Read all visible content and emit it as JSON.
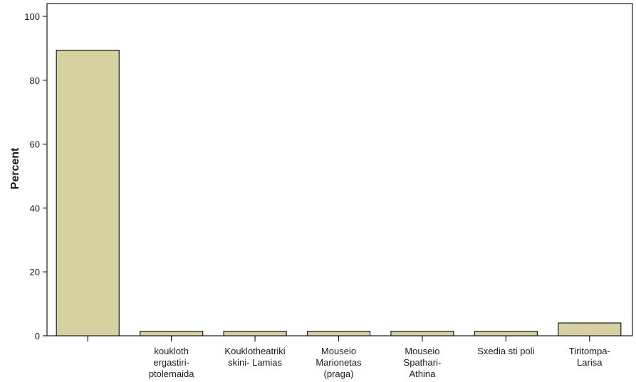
{
  "chart_data": {
    "type": "bar",
    "title": "",
    "xlabel": "",
    "ylabel": "Percent",
    "ylim": [
      0,
      104
    ],
    "yticks": [
      0,
      20,
      40,
      60,
      80,
      100
    ],
    "grid": false,
    "categories": [
      "",
      "koukloth ergastiri-ptolemaida",
      "Kouklotheatriki skini- Lamias",
      "Mouseio Marionetas (praga)",
      "Mouseio Spathari-Athina",
      "Sxedia sti poli",
      "Tiritompa-Larisa"
    ],
    "category_lines": [
      [
        ""
      ],
      [
        "koukloth",
        "ergastiri-",
        "ptolemaida"
      ],
      [
        "Kouklotheatriki",
        "skini- Lamias"
      ],
      [
        "Mouseio",
        "Marionetas",
        "(praga)"
      ],
      [
        "Mouseio",
        "Spathari-",
        "Athina"
      ],
      [
        "Sxedia sti poli"
      ],
      [
        "Tiritompa-",
        "Larisa"
      ]
    ],
    "values": [
      89.4,
      1.4,
      1.4,
      1.4,
      1.4,
      1.4,
      4.0
    ],
    "bar_color": "#d6d1a0",
    "bar_stroke": "#1a1a1a"
  }
}
